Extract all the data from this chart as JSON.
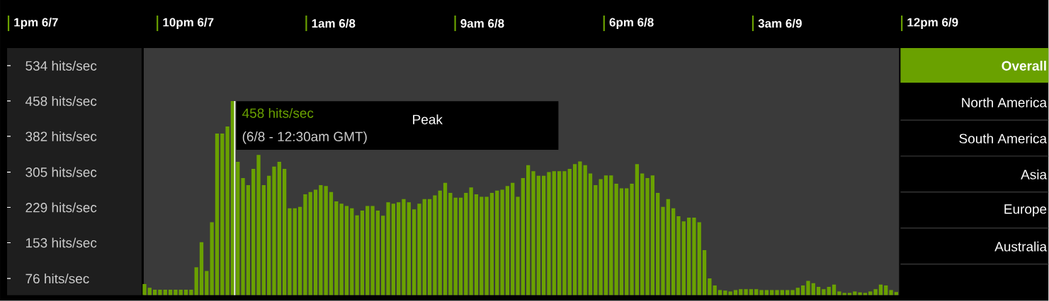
{
  "chart_data": {
    "type": "bar",
    "categories": [
      null,
      null,
      null,
      null,
      null,
      null,
      null,
      null,
      null,
      null,
      null,
      null,
      null,
      null,
      null,
      null,
      null,
      null,
      null,
      null,
      null,
      null,
      null,
      null,
      null,
      null,
      null,
      null,
      null,
      null,
      null,
      null,
      null,
      null,
      null,
      null,
      null,
      null,
      null,
      null,
      null,
      null,
      null,
      null,
      null,
      null,
      null,
      null,
      null,
      null,
      null,
      null,
      null,
      null,
      null,
      null,
      null,
      null,
      null,
      null,
      null,
      null,
      null,
      null,
      null,
      null,
      null,
      null,
      null,
      null,
      null,
      null,
      null,
      null,
      null,
      null,
      null,
      null,
      null,
      null,
      null,
      null,
      null,
      null,
      null,
      null,
      null,
      null,
      null,
      null,
      null,
      null,
      null,
      null,
      null,
      null,
      null,
      null,
      null,
      null,
      null,
      null,
      null,
      null,
      null,
      null,
      null,
      null,
      null,
      null,
      null,
      null,
      null,
      null,
      null,
      null,
      null,
      null,
      null,
      null,
      null,
      null,
      null,
      null,
      null,
      null,
      null,
      null,
      null,
      null,
      null,
      null,
      null,
      null,
      null,
      null,
      null,
      null,
      null,
      null,
      null,
      null,
      null,
      null,
      null,
      null
    ],
    "series": [
      {
        "color": "#6aa100",
        "values": [
          64,
          56,
          52,
          52,
          52,
          52,
          52,
          52,
          52,
          52,
          100,
          154,
          92,
          197,
          388,
          388,
          403,
          458,
          327,
          292,
          277,
          312,
          342,
          277,
          297,
          317,
          327,
          312,
          227,
          227,
          230,
          257,
          262,
          267,
          277,
          275,
          262,
          242,
          237,
          232,
          227,
          212,
          222,
          232,
          232,
          222,
          211,
          240,
          237,
          240,
          247,
          240,
          225,
          237,
          247,
          247,
          255,
          265,
          282,
          260,
          250,
          250,
          260,
          272,
          257,
          252,
          252,
          260,
          265,
          267,
          275,
          282,
          252,
          292,
          320,
          307,
          297,
          297,
          305,
          307,
          307,
          307,
          312,
          322,
          328,
          320,
          302,
          277,
          290,
          298,
          298,
          280,
          270,
          270,
          280,
          322,
          302,
          292,
          298,
          260,
          230,
          247,
          227,
          210,
          199,
          207,
          207,
          197,
          137,
          76,
          61,
          51,
          50,
          48,
          51,
          53,
          53,
          53,
          53,
          51,
          51,
          51,
          51,
          51,
          51,
          51,
          56,
          61,
          71,
          66,
          58,
          53,
          58,
          63,
          48,
          45,
          45,
          48,
          46,
          45,
          48,
          53,
          63,
          61,
          51,
          47
        ]
      }
    ],
    "ylim": [
      40,
      572
    ],
    "yticks": [
      {
        "value": 76,
        "label": "76 hits/sec"
      },
      {
        "value": 153,
        "label": "153 hits/sec"
      },
      {
        "value": 229,
        "label": "229 hits/sec"
      },
      {
        "value": 305,
        "label": "305 hits/sec"
      },
      {
        "value": 382,
        "label": "382 hits/sec"
      },
      {
        "value": 458,
        "label": "458 hits/sec"
      },
      {
        "value": 534,
        "label": "534 hits/sec"
      }
    ],
    "annotations": [
      "458 hits/sec",
      "(6/8 - 12:30am GMT)",
      "Peak",
      "1pm 6/7",
      "10pm 6/7",
      "1am 6/8",
      "9am 6/8",
      "6pm 6/8",
      "3am 6/9",
      "12pm 6/9",
      "Overall",
      "North America",
      "South America",
      "Asia",
      "Europe",
      "Australia"
    ]
  }
}
